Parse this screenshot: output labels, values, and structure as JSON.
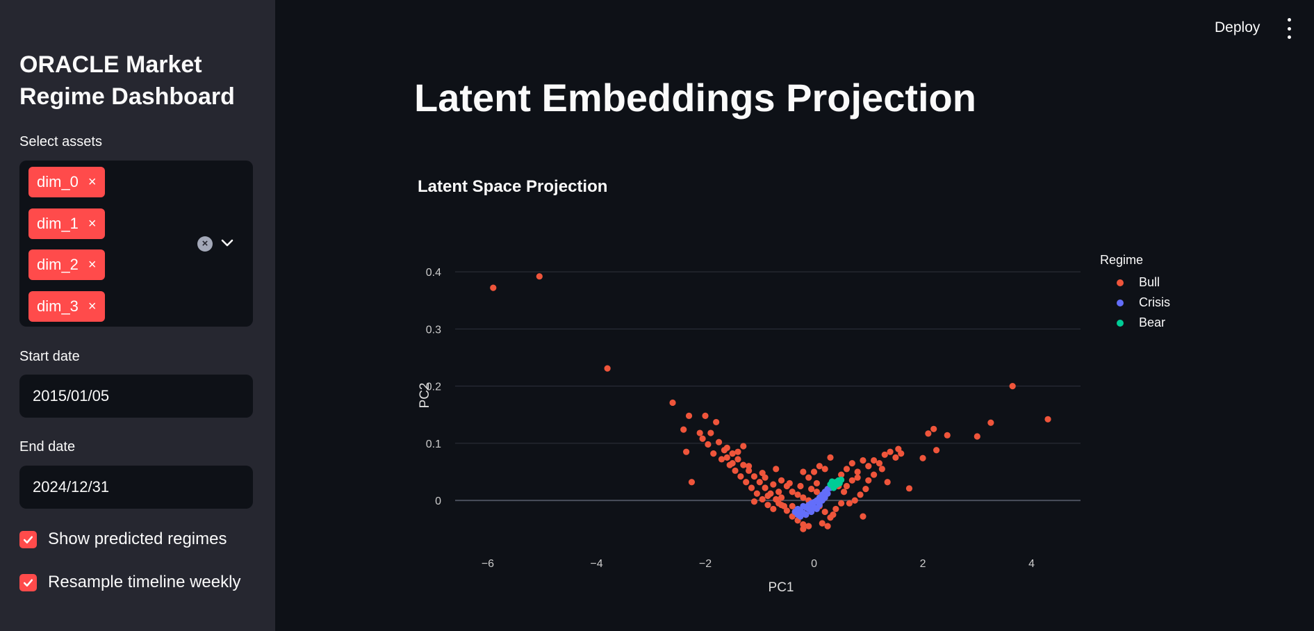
{
  "sidebar": {
    "title": "ORACLE Market Regime Dashboard",
    "assets_label": "Select assets",
    "selected_assets": [
      "dim_0",
      "dim_1",
      "dim_2",
      "dim_3"
    ],
    "tag_remove_glyph": "×",
    "clear_glyph": "×",
    "start_date_label": "Start date",
    "start_date_value": "2015/01/05",
    "end_date_label": "End date",
    "end_date_value": "2024/12/31",
    "checkboxes": [
      {
        "label": "Show predicted regimes",
        "checked": true
      },
      {
        "label": "Resample timeline weekly",
        "checked": true
      }
    ]
  },
  "header": {
    "deploy_label": "Deploy",
    "menu_icon": "vertical-dots-icon"
  },
  "main": {
    "page_title": "Latent Embeddings Projection"
  },
  "chart_data": {
    "type": "scatter",
    "title": "Latent Space Projection",
    "xlabel": "PC1",
    "ylabel": "PC2",
    "xlim": [
      -6.6,
      4.9
    ],
    "ylim": [
      -0.085,
      0.45
    ],
    "x_ticks": [
      -6,
      -4,
      -2,
      0,
      2,
      4
    ],
    "y_ticks": [
      0,
      0.1,
      0.2,
      0.3,
      0.4
    ],
    "grid": true,
    "legend_title": "Regime",
    "legend_position": "right",
    "series": [
      {
        "name": "Bull",
        "color": "#ef553b",
        "points": [
          [
            -5.9,
            0.372
          ],
          [
            -5.05,
            0.392
          ],
          [
            -3.8,
            0.231
          ],
          [
            -2.6,
            0.171
          ],
          [
            -2.3,
            0.148
          ],
          [
            -2.0,
            0.148
          ],
          [
            -1.8,
            0.137
          ],
          [
            -2.4,
            0.124
          ],
          [
            -2.35,
            0.085
          ],
          [
            -2.25,
            0.032
          ],
          [
            -2.1,
            0.118
          ],
          [
            -2.05,
            0.108
          ],
          [
            -1.95,
            0.098
          ],
          [
            -1.9,
            0.118
          ],
          [
            -1.75,
            0.102
          ],
          [
            -1.6,
            0.092
          ],
          [
            -1.5,
            0.082
          ],
          [
            -1.4,
            0.072
          ],
          [
            -1.3,
            0.062
          ],
          [
            -1.2,
            0.052
          ],
          [
            -1.1,
            0.042
          ],
          [
            -1.0,
            0.032
          ],
          [
            -0.9,
            0.022
          ],
          [
            -0.8,
            0.012
          ],
          [
            -0.7,
            0.002
          ],
          [
            -0.6,
            -0.008
          ],
          [
            -0.5,
            -0.018
          ],
          [
            -0.4,
            -0.028
          ],
          [
            -0.3,
            -0.035
          ],
          [
            -0.2,
            -0.042
          ],
          [
            -0.1,
            -0.045
          ],
          [
            -1.7,
            0.072
          ],
          [
            -1.55,
            0.062
          ],
          [
            -1.45,
            0.052
          ],
          [
            -1.35,
            0.042
          ],
          [
            -1.25,
            0.032
          ],
          [
            -1.15,
            0.022
          ],
          [
            -1.05,
            0.012
          ],
          [
            -0.95,
            0.002
          ],
          [
            -0.85,
            -0.008
          ],
          [
            -0.75,
            -0.015
          ],
          [
            -1.85,
            0.082
          ],
          [
            -1.65,
            0.088
          ],
          [
            -1.5,
            0.065
          ],
          [
            -1.2,
            0.06
          ],
          [
            -0.9,
            0.04
          ],
          [
            -0.7,
            0.055
          ],
          [
            -0.6,
            0.035
          ],
          [
            -0.5,
            0.025
          ],
          [
            -0.4,
            0.015
          ],
          [
            -0.3,
            0.01
          ],
          [
            -0.2,
            0.005
          ],
          [
            -0.1,
            0.0
          ],
          [
            -0.15,
            -0.025
          ],
          [
            -0.35,
            -0.02
          ],
          [
            -0.55,
            -0.01
          ],
          [
            -0.65,
            0.015
          ],
          [
            -0.45,
            0.03
          ],
          [
            -0.25,
            0.025
          ],
          [
            -0.05,
            0.02
          ],
          [
            0.05,
            0.015
          ],
          [
            0.1,
            -0.01
          ],
          [
            0.2,
            -0.02
          ],
          [
            0.3,
            -0.03
          ],
          [
            0.15,
            -0.04
          ],
          [
            0.25,
            -0.045
          ],
          [
            0.35,
            -0.025
          ],
          [
            0.4,
            -0.015
          ],
          [
            0.5,
            -0.005
          ],
          [
            -0.2,
            -0.05
          ],
          [
            -1.1,
            -0.002
          ],
          [
            -0.85,
            0.008
          ],
          [
            -0.65,
            -0.005
          ],
          [
            -0.75,
            0.028
          ],
          [
            -0.95,
            0.048
          ],
          [
            0.0,
            0.05
          ],
          [
            0.1,
            0.06
          ],
          [
            -0.2,
            0.05
          ],
          [
            0.3,
            0.075
          ],
          [
            0.2,
            0.055
          ],
          [
            -0.1,
            0.04
          ],
          [
            0.05,
            0.03
          ],
          [
            0.5,
            0.045
          ],
          [
            0.6,
            0.055
          ],
          [
            0.7,
            0.065
          ],
          [
            0.8,
            0.05
          ],
          [
            0.9,
            0.07
          ],
          [
            1.0,
            0.06
          ],
          [
            1.1,
            0.07
          ],
          [
            1.2,
            0.065
          ],
          [
            1.3,
            0.08
          ],
          [
            1.4,
            0.085
          ],
          [
            1.5,
            0.075
          ],
          [
            1.55,
            0.09
          ],
          [
            1.6,
            0.082
          ],
          [
            1.25,
            0.055
          ],
          [
            1.1,
            0.045
          ],
          [
            1.0,
            0.035
          ],
          [
            0.95,
            0.02
          ],
          [
            0.85,
            0.01
          ],
          [
            0.75,
            0.0
          ],
          [
            0.65,
            -0.005
          ],
          [
            0.55,
            0.015
          ],
          [
            0.45,
            0.025
          ],
          [
            0.9,
            -0.028
          ],
          [
            1.35,
            0.032
          ],
          [
            1.75,
            0.021
          ],
          [
            2.0,
            0.074
          ],
          [
            2.1,
            0.117
          ],
          [
            2.2,
            0.125
          ],
          [
            2.25,
            0.088
          ],
          [
            2.45,
            0.114
          ],
          [
            3.0,
            0.112
          ],
          [
            3.25,
            0.136
          ],
          [
            3.65,
            0.2
          ],
          [
            4.3,
            0.142
          ],
          [
            0.7,
            0.035
          ],
          [
            0.6,
            0.025
          ],
          [
            0.8,
            0.04
          ],
          [
            -0.4,
            -0.01
          ],
          [
            -0.6,
            0.005
          ],
          [
            -1.4,
            0.085
          ],
          [
            -1.3,
            0.095
          ],
          [
            -1.6,
            0.075
          ]
        ]
      },
      {
        "name": "Crisis",
        "color": "#636efa",
        "points": [
          [
            -0.35,
            -0.02
          ],
          [
            -0.3,
            -0.015
          ],
          [
            -0.25,
            -0.018
          ],
          [
            -0.2,
            -0.01
          ],
          [
            -0.15,
            -0.012
          ],
          [
            -0.1,
            -0.008
          ],
          [
            -0.05,
            -0.005
          ],
          [
            0.0,
            -0.003
          ],
          [
            0.05,
            0.0
          ],
          [
            0.1,
            0.005
          ],
          [
            0.15,
            0.01
          ],
          [
            0.2,
            0.015
          ],
          [
            0.25,
            0.02
          ],
          [
            0.3,
            0.022
          ],
          [
            -0.25,
            -0.028
          ],
          [
            -0.15,
            -0.025
          ],
          [
            -0.05,
            -0.02
          ],
          [
            0.05,
            -0.015
          ],
          [
            0.1,
            -0.008
          ],
          [
            -0.2,
            -0.022
          ],
          [
            0.0,
            -0.012
          ],
          [
            0.2,
            0.005
          ],
          [
            -0.1,
            -0.015
          ],
          [
            0.15,
            0.0
          ],
          [
            0.25,
            0.012
          ],
          [
            -0.3,
            -0.025
          ]
        ]
      },
      {
        "name": "Bear",
        "color": "#00cc96",
        "points": [
          [
            0.3,
            0.028
          ],
          [
            0.35,
            0.03
          ],
          [
            0.4,
            0.032
          ],
          [
            0.45,
            0.035
          ],
          [
            0.38,
            0.025
          ],
          [
            0.42,
            0.028
          ],
          [
            0.33,
            0.033
          ],
          [
            0.47,
            0.03
          ],
          [
            0.36,
            0.022
          ],
          [
            0.5,
            0.036
          ]
        ]
      }
    ]
  }
}
